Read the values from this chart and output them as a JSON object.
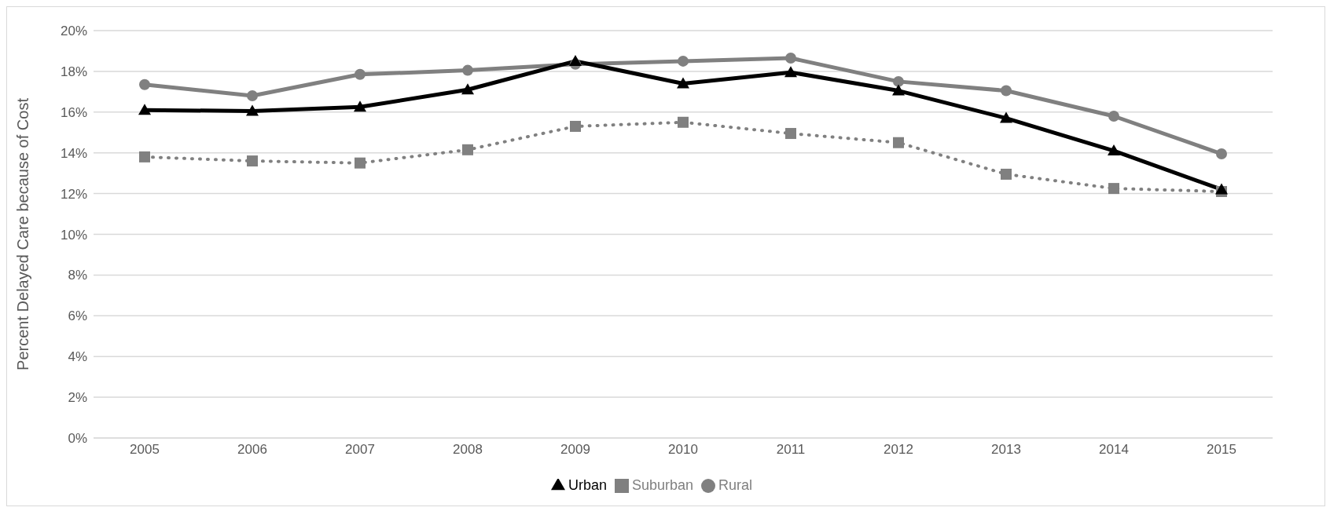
{
  "chart_data": {
    "type": "line",
    "ylabel": "Percent Delayed Care because of Cost",
    "categories": [
      "2005",
      "2006",
      "2007",
      "2008",
      "2009",
      "2010",
      "2011",
      "2012",
      "2013",
      "2014",
      "2015"
    ],
    "series": [
      {
        "name": "Urban",
        "color": "#000000",
        "marker": "triangle",
        "line_style": "solid",
        "values": [
          16.1,
          16.05,
          16.25,
          17.1,
          18.5,
          17.4,
          17.95,
          17.05,
          15.7,
          14.1,
          12.2
        ]
      },
      {
        "name": "Suburban",
        "color": "#808080",
        "marker": "square",
        "line_style": "dotted",
        "values": [
          13.8,
          13.6,
          13.5,
          14.15,
          15.3,
          15.5,
          14.95,
          14.5,
          12.95,
          12.25,
          12.1
        ]
      },
      {
        "name": "Rural",
        "color": "#808080",
        "marker": "circle",
        "line_style": "solid",
        "values": [
          17.35,
          16.8,
          17.85,
          18.05,
          18.35,
          18.5,
          18.65,
          17.5,
          17.05,
          15.8,
          13.95
        ]
      }
    ],
    "ylim": [
      0,
      20
    ],
    "yticks": [
      {
        "value": 0,
        "label": "0%"
      },
      {
        "value": 2,
        "label": "2%"
      },
      {
        "value": 4,
        "label": "4%"
      },
      {
        "value": 6,
        "label": "6%"
      },
      {
        "value": 8,
        "label": "8%"
      },
      {
        "value": 10,
        "label": "10%"
      },
      {
        "value": 12,
        "label": "12%"
      },
      {
        "value": 14,
        "label": "14%"
      },
      {
        "value": 16,
        "label": "16%"
      },
      {
        "value": 18,
        "label": "18%"
      },
      {
        "value": 20,
        "label": "20%"
      }
    ],
    "grid": "y",
    "legend": "bottom"
  }
}
